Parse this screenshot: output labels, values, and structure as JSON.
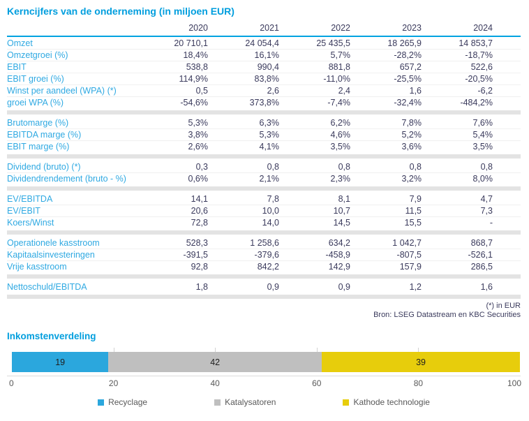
{
  "header": {
    "table_title": "Kerncijfers van de onderneming (in miljoen EUR)"
  },
  "table": {
    "years": [
      "2020",
      "2021",
      "2022",
      "2023",
      "2024"
    ],
    "sections": [
      {
        "rows": [
          {
            "label": "Omzet",
            "values": [
              "20 710,1",
              "24 054,4",
              "25 435,5",
              "18 265,9",
              "14 853,7"
            ]
          },
          {
            "label": "Omzetgroei (%)",
            "values": [
              "18,4%",
              "16,1%",
              "5,7%",
              "-28,2%",
              "-18,7%"
            ]
          },
          {
            "label": "EBIT",
            "values": [
              "538,8",
              "990,4",
              "881,8",
              "657,2",
              "522,6"
            ]
          },
          {
            "label": "EBIT groei (%)",
            "values": [
              "114,9%",
              "83,8%",
              "-11,0%",
              "-25,5%",
              "-20,5%"
            ]
          },
          {
            "label": "Winst per aandeel (WPA) (*)",
            "values": [
              "0,5",
              "2,6",
              "2,4",
              "1,6",
              "-6,2"
            ]
          },
          {
            "label": "groei WPA (%)",
            "values": [
              "-54,6%",
              "373,8%",
              "-7,4%",
              "-32,4%",
              "-484,2%"
            ]
          }
        ]
      },
      {
        "rows": [
          {
            "label": "Brutomarge (%)",
            "values": [
              "5,3%",
              "6,3%",
              "6,2%",
              "7,8%",
              "7,6%"
            ]
          },
          {
            "label": "EBITDA marge (%)",
            "values": [
              "3,8%",
              "5,3%",
              "4,6%",
              "5,2%",
              "5,4%"
            ]
          },
          {
            "label": "EBIT marge (%)",
            "values": [
              "2,6%",
              "4,1%",
              "3,5%",
              "3,6%",
              "3,5%"
            ]
          }
        ]
      },
      {
        "rows": [
          {
            "label": "Dividend (bruto) (*)",
            "values": [
              "0,3",
              "0,8",
              "0,8",
              "0,8",
              "0,8"
            ]
          },
          {
            "label": "Dividendrendement (bruto - %)",
            "values": [
              "0,6%",
              "2,1%",
              "2,3%",
              "3,2%",
              "8,0%"
            ]
          }
        ]
      },
      {
        "rows": [
          {
            "label": "EV/EBITDA",
            "values": [
              "14,1",
              "7,8",
              "8,1",
              "7,9",
              "4,7"
            ]
          },
          {
            "label": "EV/EBIT",
            "values": [
              "20,6",
              "10,0",
              "10,7",
              "11,5",
              "7,3"
            ]
          },
          {
            "label": "Koers/Winst",
            "values": [
              "72,8",
              "14,0",
              "14,5",
              "15,5",
              "-"
            ]
          }
        ]
      },
      {
        "rows": [
          {
            "label": "Operationele kasstroom",
            "values": [
              "528,3",
              "1 258,6",
              "634,2",
              "1 042,7",
              "868,7"
            ]
          },
          {
            "label": "Kapitaalsinvesteringen",
            "values": [
              "-391,5",
              "-379,6",
              "-458,9",
              "-807,5",
              "-526,1"
            ]
          },
          {
            "label": "Vrije kasstroom",
            "values": [
              "92,8",
              "842,2",
              "142,9",
              "157,9",
              "286,5"
            ]
          }
        ]
      },
      {
        "rows": [
          {
            "label": "Nettoschuld/EBITDA",
            "values": [
              "1,8",
              "0,9",
              "0,9",
              "1,2",
              "1,6"
            ]
          }
        ]
      }
    ],
    "footnote": "(*) in EUR",
    "source": "Bron: LSEG Datastream en KBC Securities"
  },
  "chart_data": {
    "type": "bar",
    "orientation": "horizontal-stacked",
    "title": "Inkomstenverdeling",
    "series": [
      {
        "name": "Recyclage",
        "value": 19,
        "color": "#2BA7DD"
      },
      {
        "name": "Katalysatoren",
        "value": 42,
        "color": "#BFBFBF"
      },
      {
        "name": "Kathode technologie",
        "value": 39,
        "color": "#E7CD0C"
      }
    ],
    "xlim": [
      0,
      100
    ],
    "x_ticks": [
      "0",
      "20",
      "40",
      "60",
      "80",
      "100"
    ],
    "grid": "tick-stubs-above-bar",
    "legend_position": "bottom",
    "data_labels": "inside-center"
  },
  "colors": {
    "title_blue": "#009EDE",
    "label_blue": "#2FA9E2",
    "value_dark": "#3A3A5C",
    "header_rule_blue": "#00A3E0",
    "separator_gray": "#E3E3E3",
    "axis_text_gray": "#595959"
  }
}
